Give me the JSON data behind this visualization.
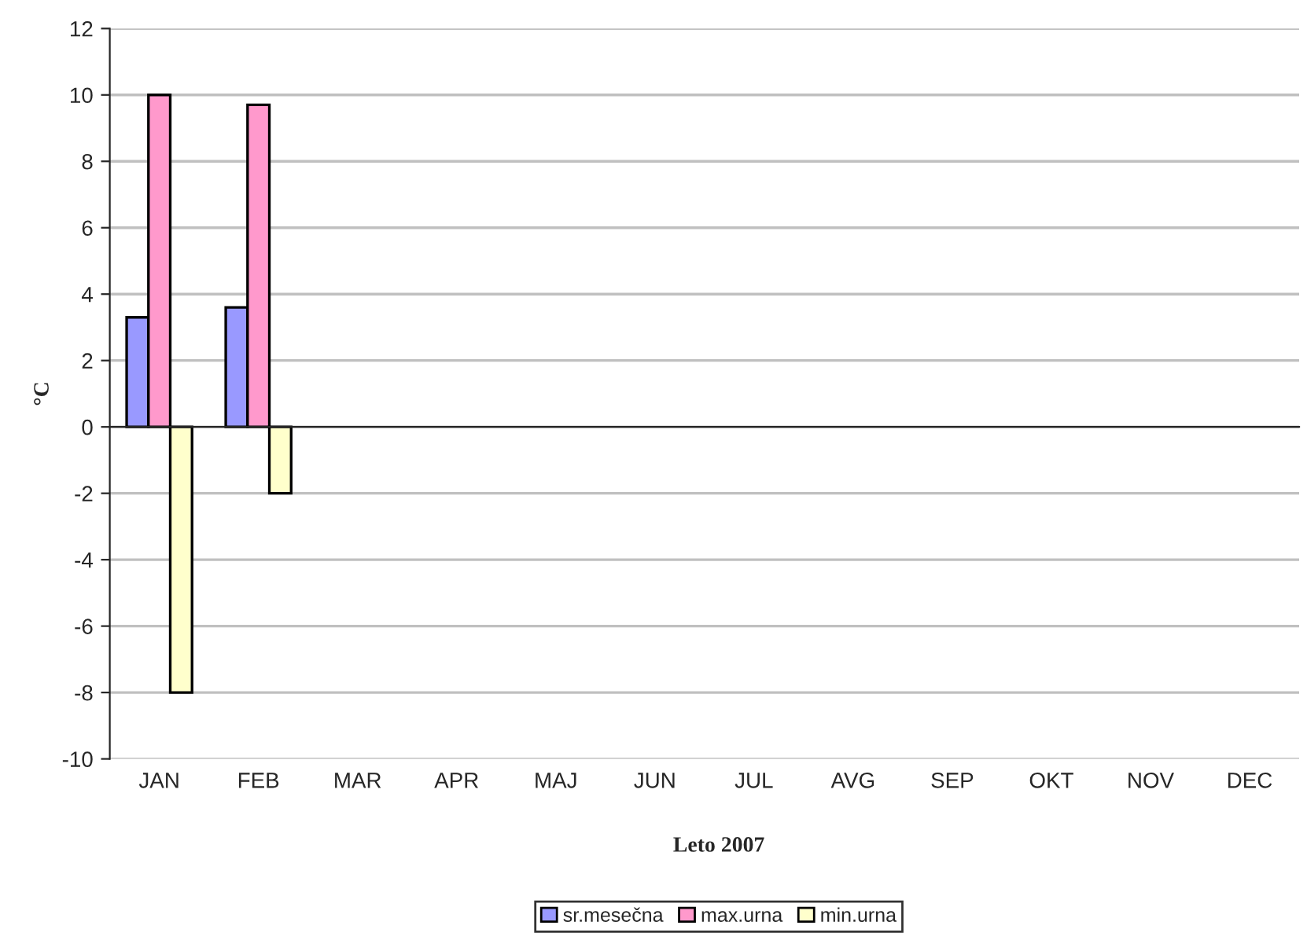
{
  "chart_data": {
    "type": "bar",
    "xlabel": "Leto 2007",
    "ylabel": "°C",
    "categories": [
      "JAN",
      "FEB",
      "MAR",
      "APR",
      "MAJ",
      "JUN",
      "JUL",
      "AVG",
      "SEP",
      "OKT",
      "NOV",
      "DEC"
    ],
    "series": [
      {
        "name": "sr.mesečna",
        "color": "#9999ff",
        "values": [
          3.3,
          3.6,
          null,
          null,
          null,
          null,
          null,
          null,
          null,
          null,
          null,
          null
        ]
      },
      {
        "name": "max.urna",
        "color": "#ff99cc",
        "values": [
          10,
          9.7,
          null,
          null,
          null,
          null,
          null,
          null,
          null,
          null,
          null,
          null
        ]
      },
      {
        "name": "min.urna",
        "color": "#ffffcc",
        "values": [
          -8,
          -2,
          null,
          null,
          null,
          null,
          null,
          null,
          null,
          null,
          null,
          null
        ]
      }
    ],
    "ylim": [
      -10,
      12
    ],
    "yticks": [
      -10,
      -8,
      -6,
      -4,
      -2,
      0,
      2,
      4,
      6,
      8,
      10,
      12
    ],
    "grid": "y",
    "legend": "bottom"
  }
}
